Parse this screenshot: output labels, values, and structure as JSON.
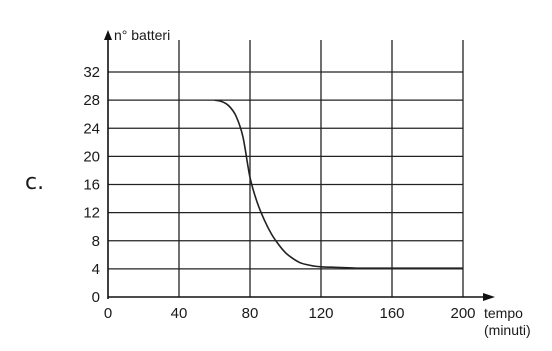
{
  "panel_label": "c.",
  "chart_data": {
    "type": "line",
    "ylabel": "n° batteri",
    "xlabel": "tempo",
    "xlabel_unit": "(minuti)",
    "x_ticks": [
      "0",
      "40",
      "80",
      "120",
      "160",
      "200"
    ],
    "y_ticks": [
      "0",
      "4",
      "8",
      "12",
      "16",
      "20",
      "24",
      "28",
      "32"
    ],
    "xlim": [
      0,
      200
    ],
    "ylim": [
      0,
      32
    ],
    "grid": true,
    "series": [
      {
        "x": [
          60,
          64,
          68,
          72,
          76,
          80,
          84,
          88,
          92,
          96,
          100,
          104,
          108,
          112,
          116,
          120,
          130,
          140,
          150,
          160,
          180,
          200
        ],
        "values": [
          28,
          27.8,
          27.2,
          25.8,
          22.8,
          17.0,
          13.5,
          11.0,
          9.0,
          7.5,
          6.3,
          5.5,
          4.9,
          4.6,
          4.4,
          4.3,
          4.2,
          4.1,
          4.1,
          4.1,
          4.1,
          4.1
        ]
      }
    ]
  }
}
